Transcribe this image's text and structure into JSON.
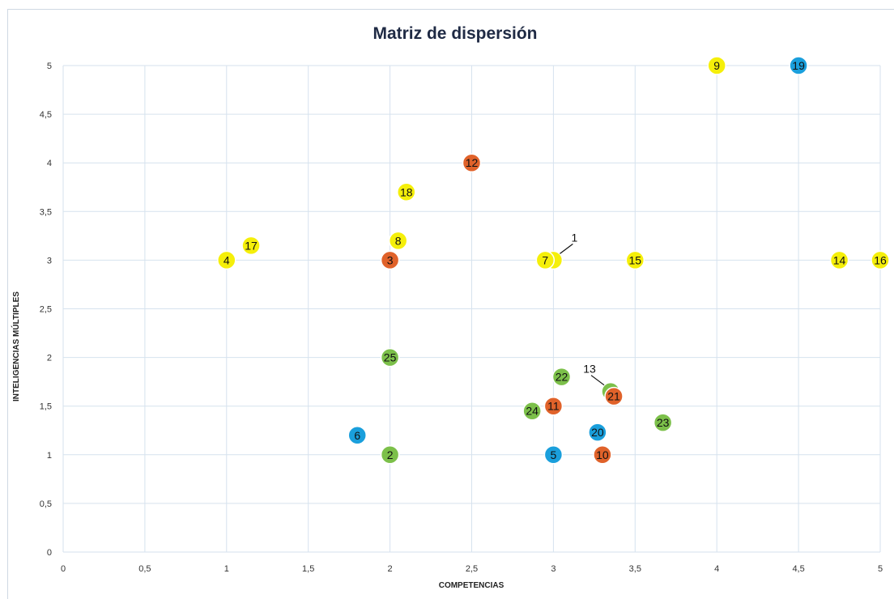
{
  "chart_data": {
    "type": "scatter",
    "title": "Matriz de dispersión",
    "xlabel": "COMPETENCIAS",
    "ylabel": "INTELIGENCIAS MÚLTIPLES",
    "xlim": [
      0,
      5
    ],
    "ylim": [
      0,
      5
    ],
    "x_ticks": [
      "0",
      "0,5",
      "1",
      "1,5",
      "2",
      "2,5",
      "3",
      "3,5",
      "4",
      "4,5",
      "5"
    ],
    "y_ticks": [
      "0",
      "0,5",
      "1",
      "1,5",
      "2",
      "2,5",
      "3",
      "3,5",
      "4",
      "4,5",
      "5"
    ],
    "grid": true,
    "legend": "none",
    "colors": {
      "yellow": "#f5ef0a",
      "orange": "#e0622a",
      "blue": "#1a9fdc",
      "green": "#7cc04a"
    },
    "points": [
      {
        "label": "1",
        "x": 3.0,
        "y": 3.0,
        "color": "yellow"
      },
      {
        "label": "2",
        "x": 2.0,
        "y": 1.0,
        "color": "green"
      },
      {
        "label": "3",
        "x": 2.0,
        "y": 3.0,
        "color": "orange"
      },
      {
        "label": "4",
        "x": 1.0,
        "y": 3.0,
        "color": "yellow"
      },
      {
        "label": "5",
        "x": 3.0,
        "y": 1.0,
        "color": "blue"
      },
      {
        "label": "6",
        "x": 1.8,
        "y": 1.2,
        "color": "blue"
      },
      {
        "label": "7",
        "x": 2.95,
        "y": 3.0,
        "color": "yellow"
      },
      {
        "label": "8",
        "x": 2.05,
        "y": 3.2,
        "color": "yellow"
      },
      {
        "label": "9",
        "x": 4.0,
        "y": 5.0,
        "color": "yellow"
      },
      {
        "label": "10",
        "x": 3.3,
        "y": 1.0,
        "color": "orange"
      },
      {
        "label": "11",
        "x": 3.0,
        "y": 1.5,
        "color": "orange"
      },
      {
        "label": "12",
        "x": 2.5,
        "y": 4.0,
        "color": "orange"
      },
      {
        "label": "13",
        "x": 3.35,
        "y": 1.65,
        "color": "green"
      },
      {
        "label": "14",
        "x": 4.75,
        "y": 3.0,
        "color": "yellow"
      },
      {
        "label": "15",
        "x": 3.5,
        "y": 3.0,
        "color": "yellow"
      },
      {
        "label": "16",
        "x": 5.0,
        "y": 3.0,
        "color": "yellow"
      },
      {
        "label": "17",
        "x": 1.15,
        "y": 3.15,
        "color": "yellow"
      },
      {
        "label": "18",
        "x": 2.1,
        "y": 3.7,
        "color": "yellow"
      },
      {
        "label": "19",
        "x": 4.5,
        "y": 5.0,
        "color": "blue"
      },
      {
        "label": "20",
        "x": 3.27,
        "y": 1.23,
        "color": "blue"
      },
      {
        "label": "21",
        "x": 3.37,
        "y": 1.6,
        "color": "orange"
      },
      {
        "label": "22",
        "x": 3.05,
        "y": 1.8,
        "color": "green"
      },
      {
        "label": "23",
        "x": 3.67,
        "y": 1.33,
        "color": "green"
      },
      {
        "label": "24",
        "x": 2.87,
        "y": 1.45,
        "color": "green"
      },
      {
        "label": "25",
        "x": 2.0,
        "y": 2.0,
        "color": "green"
      }
    ],
    "callouts": [
      "1",
      "13"
    ]
  }
}
